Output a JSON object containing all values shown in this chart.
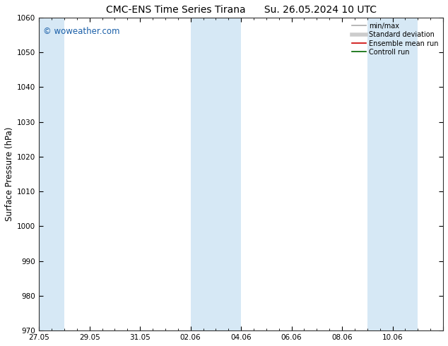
{
  "title_left": "CMC-ENS Time Series Tirana",
  "title_right": "Su. 26.05.2024 10 UTC",
  "ylabel": "Surface Pressure (hPa)",
  "ylim": [
    970,
    1060
  ],
  "yticks": [
    970,
    980,
    990,
    1000,
    1010,
    1020,
    1030,
    1040,
    1050,
    1060
  ],
  "x_start_day": 0,
  "x_end_day": 16,
  "xtick_major_days": [
    0,
    2,
    4,
    6,
    8,
    10,
    12,
    14,
    16
  ],
  "xtick_major_labels": [
    "27.05",
    "29.05",
    "31.05",
    "02.06",
    "04.06",
    "06.06",
    "08.06",
    "10.06",
    ""
  ],
  "shaded_bands": [
    {
      "x_start": 0.0,
      "x_end": 1.0
    },
    {
      "x_start": 6.0,
      "x_end": 7.0
    },
    {
      "x_start": 7.0,
      "x_end": 8.0
    },
    {
      "x_start": 13.0,
      "x_end": 14.0
    },
    {
      "x_start": 14.0,
      "x_end": 15.0
    }
  ],
  "shaded_color": "#d6e8f5",
  "watermark_text": "© woweather.com",
  "watermark_color": "#1a5fa8",
  "legend_entries": [
    {
      "label": "min/max",
      "color": "#aaaaaa",
      "lw": 1.2,
      "style": "solid"
    },
    {
      "label": "Standard deviation",
      "color": "#cccccc",
      "lw": 4,
      "style": "solid"
    },
    {
      "label": "Ensemble mean run",
      "color": "#cc0000",
      "lw": 1.2,
      "style": "solid"
    },
    {
      "label": "Controll run",
      "color": "#006600",
      "lw": 1.2,
      "style": "solid"
    }
  ],
  "bg_color": "#ffffff",
  "axes_bg_color": "#ffffff",
  "title_fontsize": 10,
  "tick_fontsize": 7.5,
  "ylabel_fontsize": 8.5,
  "watermark_fontsize": 8.5,
  "legend_fontsize": 7
}
